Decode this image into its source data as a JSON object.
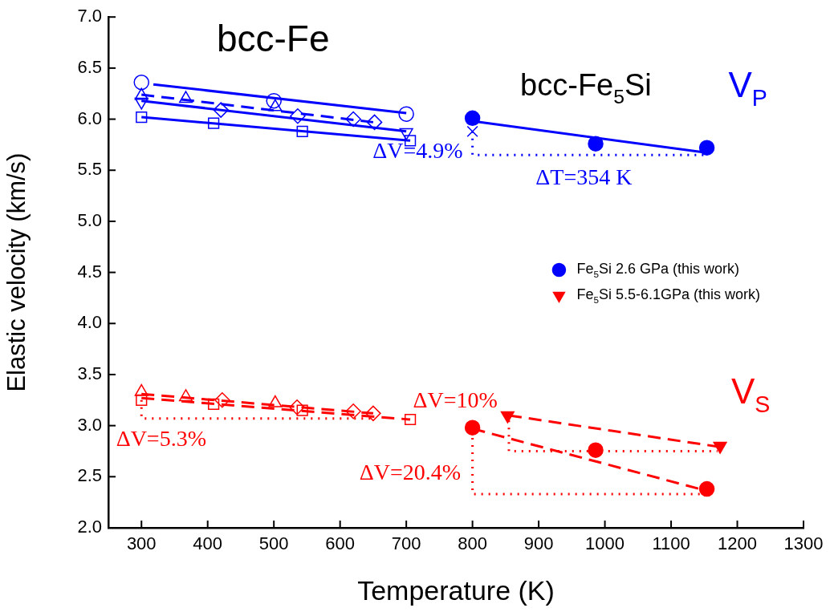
{
  "chart_data": {
    "type": "scatter",
    "xlabel": "Temperature (K)",
    "ylabel": "Elastic velocity (km/s)",
    "xlim": [
      250,
      1300
    ],
    "xticks": [
      300,
      400,
      500,
      600,
      700,
      800,
      900,
      1000,
      1100,
      1200,
      1300
    ],
    "ylim": [
      2.0,
      7.0
    ],
    "yticks": [
      {
        "value": 2,
        "label": "2.0"
      },
      2.5,
      {
        "value": 3,
        "label": "3.0"
      },
      3.5,
      {
        "value": 4,
        "label": "4.0"
      },
      4.5,
      {
        "value": 5,
        "label": "5.0"
      },
      5.5,
      {
        "value": 6,
        "label": "6.0"
      },
      6.5,
      {
        "value": 7,
        "label": "7.0"
      }
    ],
    "grid": false,
    "legend": "right",
    "annotations": [
      "bcc-Fe",
      "bcc-Fe$_{5}$Si",
      "V$_{P}$",
      "V$_{S}$",
      "ΔV=4.9%",
      "ΔT=354 K",
      "ΔV=10%",
      "ΔV=5.3%",
      "ΔV=20.4%"
    ],
    "series": [
      {
        "type": "line",
        "color": "#0000ff",
        "marker": "none",
        "line_style": "solid",
        "x": [
          318,
          700
        ],
        "values": [
          6.34,
          6.06
        ]
      },
      {
        "type": "line",
        "color": "#0000ff",
        "marker": "none",
        "line_style": "dashed",
        "x": [
          300,
          650
        ],
        "values": [
          6.24,
          5.97
        ]
      },
      {
        "type": "line",
        "color": "#0000ff",
        "marker": "none",
        "line_style": "solid",
        "x": [
          300,
          700
        ],
        "values": [
          6.18,
          5.88
        ]
      },
      {
        "type": "line",
        "color": "#0000ff",
        "marker": "none",
        "line_style": "solid",
        "x": [
          300,
          706
        ],
        "values": [
          6.02,
          5.79
        ]
      },
      {
        "type": "line",
        "color": "#0000ff",
        "marker": "none",
        "line_style": "solid",
        "x": [
          800,
          1155
        ],
        "values": [
          5.98,
          5.67
        ]
      },
      {
        "type": "line",
        "color": "#0000ff",
        "marker": "none",
        "line_style": "dotted",
        "x": [
          800,
          800,
          1155
        ],
        "values": [
          5.88,
          5.65,
          5.65
        ]
      },
      {
        "type": "line",
        "color": "#ff0000",
        "marker": "none",
        "line_style": "dashed",
        "x": [
          300,
          650
        ],
        "values": [
          3.31,
          3.12
        ]
      },
      {
        "type": "line",
        "color": "#ff0000",
        "marker": "none",
        "line_style": "dashed",
        "x": [
          300,
          706
        ],
        "values": [
          3.27,
          3.06
        ]
      },
      {
        "type": "line",
        "color": "#ff0000",
        "marker": "none",
        "line_style": "dashed",
        "x": [
          800,
          1155
        ],
        "values": [
          2.97,
          2.36
        ]
      },
      {
        "type": "line",
        "color": "#ff0000",
        "marker": "none",
        "line_style": "dashed",
        "x": [
          855,
          1175
        ],
        "values": [
          3.1,
          2.79
        ]
      },
      {
        "type": "line",
        "color": "#ff0000",
        "marker": "none",
        "line_style": "dotted",
        "x": [
          300,
          300,
          652
        ],
        "values": [
          3.25,
          3.07,
          3.07
        ]
      },
      {
        "type": "line",
        "color": "#ff0000",
        "marker": "none",
        "line_style": "dotted",
        "x": [
          800,
          800,
          1155
        ],
        "values": [
          2.95,
          2.33,
          2.33
        ]
      },
      {
        "type": "line",
        "color": "#ff0000",
        "marker": "none",
        "line_style": "dotted",
        "x": [
          855,
          855,
          1170
        ],
        "values": [
          3.05,
          2.75,
          2.75
        ]
      },
      {
        "color": "#0000ff",
        "marker": "circle",
        "x": [
          300,
          500,
          700
        ],
        "values": [
          6.36,
          6.18,
          6.05
        ]
      },
      {
        "color": "#0000ff",
        "marker": "triangle",
        "x": [
          300,
          367,
          502
        ],
        "values": [
          6.23,
          6.2,
          6.12
        ]
      },
      {
        "color": "#0000ff",
        "marker": "diamond",
        "x": [
          420,
          536,
          620,
          652
        ],
        "values": [
          6.09,
          6.03,
          6.0,
          5.97
        ]
      },
      {
        "color": "#0000ff",
        "marker": "triangle-down",
        "x": [
          300,
          700
        ],
        "values": [
          6.17,
          5.87
        ]
      },
      {
        "color": "#0000ff",
        "marker": "square",
        "x": [
          300,
          409,
          543,
          706
        ],
        "values": [
          6.02,
          5.96,
          5.88,
          5.79
        ]
      },
      {
        "color": "#0000ff",
        "marker": "cross",
        "x": [
          800
        ],
        "values": [
          5.88
        ]
      },
      {
        "name": "Fe$_{5}$Si 2.6 GPa (this work)",
        "color": "#0000ff",
        "colors": [
          "#0000ff",
          "#0000ff",
          "#0000ff",
          "#ff0000",
          "#ff0000",
          "#ff0000"
        ],
        "marker": "circle",
        "x": [
          800,
          986,
          1154,
          800,
          986,
          1154
        ],
        "values": [
          6.01,
          5.76,
          5.72,
          2.98,
          2.76,
          2.38
        ]
      },
      {
        "color": "#ff0000",
        "marker": "triangle",
        "x": [
          300,
          367,
          502
        ],
        "values": [
          3.33,
          3.28,
          3.22
        ]
      },
      {
        "color": "#ff0000",
        "marker": "square",
        "x": [
          300,
          409,
          543,
          706
        ],
        "values": [
          3.25,
          3.21,
          3.15,
          3.06
        ]
      },
      {
        "color": "#ff0000",
        "marker": "diamond",
        "x": [
          422,
          535,
          620,
          650
        ],
        "values": [
          3.25,
          3.18,
          3.14,
          3.12
        ]
      },
      {
        "name": "Fe$_{5}$Si 5.5-6.1GPa (this work)",
        "color": "#ff0000",
        "marker": "triangle-down",
        "x": [
          853,
          1174
        ],
        "values": [
          3.1,
          2.8
        ]
      }
    ]
  }
}
